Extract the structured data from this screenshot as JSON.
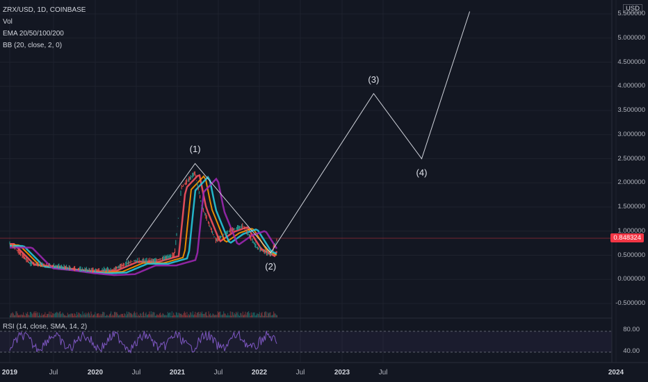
{
  "symbol_header": "ZRX/USD, 1D, COINBASE",
  "indicators": [
    "Vol",
    "EMA 20/50/100/200",
    "BB (20, close, 2, 0)"
  ],
  "rsi_label": "RSI (14, close, SMA, 14, 2)",
  "currency_badge": "USD",
  "last_price": "0.848324",
  "colors": {
    "background": "#131722",
    "price_tag": "#f23645",
    "wave_line": "#d1d4dc",
    "ema20": "#f7525f",
    "ema50": "#ff9800",
    "ema100": "#26c6da",
    "ema200": "#9c27b0",
    "rsi": "#7e57c2"
  },
  "chart_data": {
    "type": "line",
    "y_axis_ticks": [
      "5.500000",
      "5.000000",
      "4.500000",
      "4.000000",
      "3.500000",
      "3.000000",
      "2.500000",
      "2.000000",
      "1.500000",
      "1.000000",
      "0.500000",
      "0.000000",
      "-0.500000"
    ],
    "ylim": [
      -0.5,
      5.5
    ],
    "x_axis_ticks": [
      "2019",
      "Jul",
      "2020",
      "Jul",
      "2021",
      "Jul",
      "2022",
      "Jul",
      "2023",
      "Jul",
      "2024"
    ],
    "rsi_ticks": [
      "80.00",
      "40.00"
    ],
    "price_series": [
      {
        "x": "2019-01",
        "y": 0.75
      },
      {
        "x": "2019-04",
        "y": 0.32
      },
      {
        "x": "2019-07",
        "y": 0.28
      },
      {
        "x": "2019-10",
        "y": 0.22
      },
      {
        "x": "2020-01",
        "y": 0.18
      },
      {
        "x": "2020-04",
        "y": 0.2
      },
      {
        "x": "2020-07",
        "y": 0.38
      },
      {
        "x": "2020-10",
        "y": 0.38
      },
      {
        "x": "2021-01",
        "y": 0.5
      },
      {
        "x": "2021-02",
        "y": 1.9
      },
      {
        "x": "2021-04",
        "y": 2.2
      },
      {
        "x": "2021-05",
        "y": 1.5
      },
      {
        "x": "2021-07",
        "y": 0.8
      },
      {
        "x": "2021-09",
        "y": 1.0
      },
      {
        "x": "2021-11",
        "y": 1.1
      },
      {
        "x": "2022-01",
        "y": 0.65
      },
      {
        "x": "2022-03",
        "y": 0.5
      },
      {
        "x": "2022-04",
        "y": 0.85
      }
    ],
    "wave_projection": [
      {
        "label": "",
        "x": "2020-06",
        "y": 0.4
      },
      {
        "label": "(1)",
        "x": "2021-04",
        "y": 2.4
      },
      {
        "label": "(2)",
        "x": "2022-03",
        "y": 0.55
      },
      {
        "label": "(3)",
        "x": "2023-06",
        "y": 3.85
      },
      {
        "label": "(4)",
        "x": "2024-01",
        "y": 2.5
      },
      {
        "label": "",
        "x": "2024-08",
        "y": 5.55
      }
    ],
    "grid": true
  }
}
